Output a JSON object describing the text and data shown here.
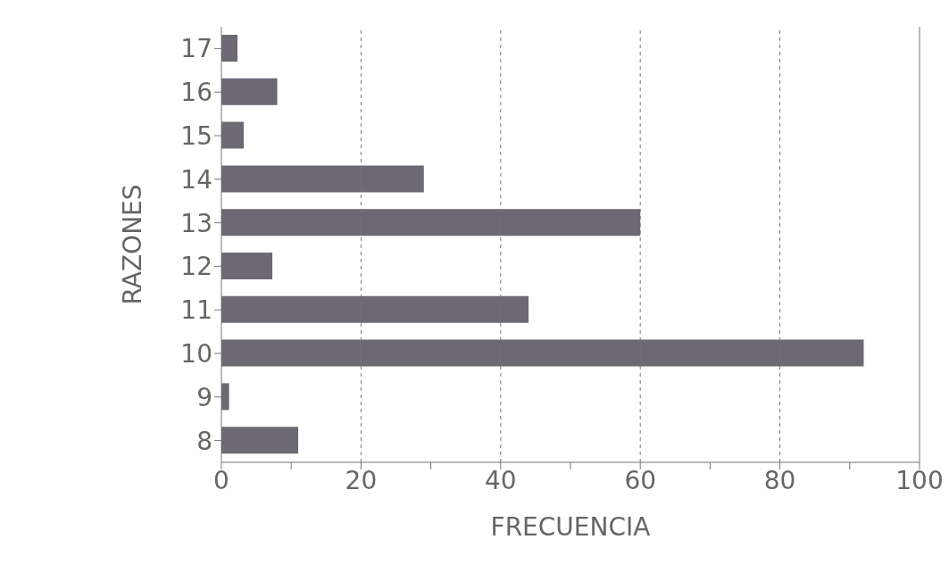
{
  "chart_data": {
    "type": "bar",
    "orientation": "horizontal",
    "xlabel": "FRECUENCIA",
    "ylabel": "RAZONES",
    "categories": [
      "17",
      "16",
      "15",
      "14",
      "13",
      "12",
      "11",
      "10",
      "9",
      "8"
    ],
    "values": [
      2.3,
      8,
      3.2,
      29,
      60,
      7.3,
      44,
      92,
      1.1,
      11
    ],
    "color": "#6c6874",
    "xlim": [
      0,
      100
    ],
    "xticks": [
      0,
      {
        "value": 10,
        "label": null
      },
      20,
      {
        "value": 30,
        "label": null
      },
      40,
      {
        "value": 50,
        "label": null
      },
      60,
      {
        "value": 70,
        "label": null
      },
      80,
      {
        "value": 90,
        "label": null
      },
      100
    ],
    "grid": "x"
  }
}
